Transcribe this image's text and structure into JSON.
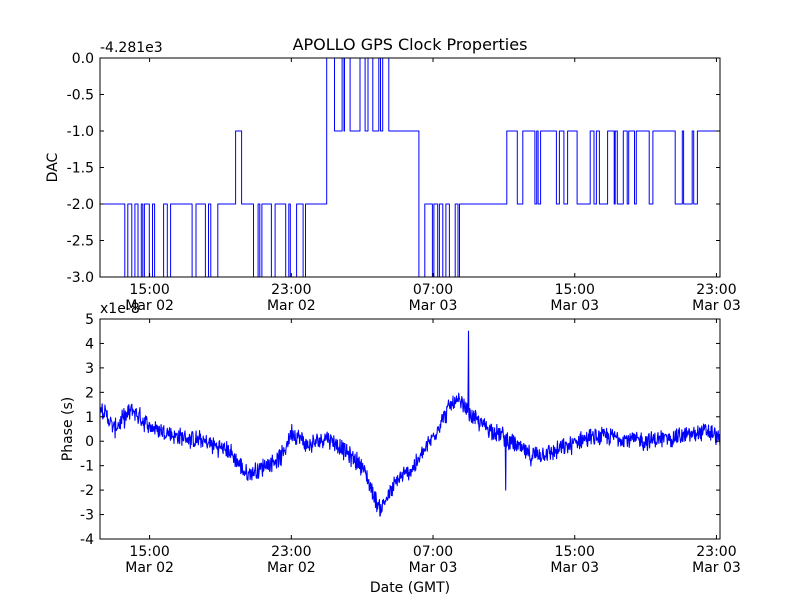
{
  "title": "APOLLO GPS Clock Properties",
  "xlabel": "Date (GMT)",
  "x_ticks": [
    {
      "time": "15:00",
      "date": "Mar 02",
      "hours": 15
    },
    {
      "time": "23:00",
      "date": "Mar 02",
      "hours": 23
    },
    {
      "time": "07:00",
      "date": "Mar 03",
      "hours": 31
    },
    {
      "time": "15:00",
      "date": "Mar 03",
      "hours": 39
    },
    {
      "time": "23:00",
      "date": "Mar 03",
      "hours": 47
    }
  ],
  "chart_data": [
    {
      "type": "line",
      "name": "dac",
      "ylabel": "DAC",
      "offset_label": "-4.281e3",
      "xlim_hours": [
        12.2,
        47.2
      ],
      "ylim": [
        -3.0,
        0.0
      ],
      "yticks": [
        "0.0",
        "-0.5",
        "-1.0",
        "-1.5",
        "-2.0",
        "-2.5",
        "-3.0"
      ],
      "grid": false,
      "segments": [
        {
          "x": [
            12.2,
            13.6
          ],
          "y": -2.0
        },
        {
          "x": [
            13.6,
            16.0
          ],
          "y": -2.0,
          "jitter": [
            -3.0
          ],
          "density": 0.45
        },
        {
          "x": [
            16.0,
            19.0
          ],
          "y": -2.0,
          "jitter": [
            -3.0
          ],
          "density": 0.3
        },
        {
          "x": [
            19.0,
            19.8
          ],
          "y": -2.0
        },
        {
          "x": [
            19.8,
            20.8
          ],
          "y": -2.0,
          "jitter": [
            -1.0
          ],
          "density": 0.4
        },
        {
          "x": [
            20.8,
            23.8
          ],
          "y": -2.0,
          "jitter": [
            -3.0
          ],
          "density": 0.45
        },
        {
          "x": [
            23.8,
            25.0
          ],
          "y": -2.0
        },
        {
          "x": [
            25.0,
            26.0
          ],
          "y": -1.0,
          "jitter": [
            0.0
          ],
          "density": 0.15
        },
        {
          "x": [
            26.0,
            29.3
          ],
          "y": -1.0,
          "jitter": [
            0.0
          ],
          "density": 0.45
        },
        {
          "x": [
            29.3,
            30.2
          ],
          "y": -1.0
        },
        {
          "x": [
            30.2,
            33.0
          ],
          "y": -2.0,
          "jitter": [
            -3.0
          ],
          "density": 0.45
        },
        {
          "x": [
            33.0,
            35.0
          ],
          "y": -2.0
        },
        {
          "x": [
            35.0,
            47.2
          ],
          "y": -1.0,
          "jitter": [
            -2.0
          ],
          "density": 0.42
        }
      ]
    },
    {
      "type": "line",
      "name": "phase",
      "ylabel": "Phase (s)",
      "offset_label": "x1e-8",
      "xlim_hours": [
        12.2,
        47.2
      ],
      "ylim": [
        -4,
        5
      ],
      "yticks": [
        "5",
        "4",
        "3",
        "2",
        "1",
        "0",
        "-1",
        "-2",
        "-3",
        "-4"
      ],
      "grid": false,
      "x": [
        12.2,
        13.0,
        14.0,
        15.0,
        16.5,
        18.0,
        19.5,
        20.5,
        21.5,
        22.5,
        23.0,
        24.0,
        25.0,
        26.0,
        27.0,
        28.0,
        29.0,
        30.0,
        31.0,
        32.0,
        32.5,
        33.5,
        35.0,
        36.5,
        38.0,
        39.5,
        41.0,
        43.0,
        45.0,
        46.5,
        47.2
      ],
      "y": [
        1.5,
        0.5,
        1.3,
        0.6,
        0.2,
        0.0,
        -0.4,
        -1.4,
        -1.0,
        -0.6,
        0.4,
        -0.2,
        0.2,
        -0.4,
        -1.0,
        -2.8,
        -1.6,
        -1.0,
        0.2,
        1.5,
        1.6,
        0.8,
        0.2,
        -0.6,
        -0.4,
        0.1,
        0.2,
        0.0,
        0.2,
        0.4,
        0.1
      ],
      "spikes": [
        {
          "x": 33.0,
          "y": 4.5
        },
        {
          "x": 35.1,
          "y": -2.0
        }
      ],
      "noise_amp": 0.45
    }
  ]
}
